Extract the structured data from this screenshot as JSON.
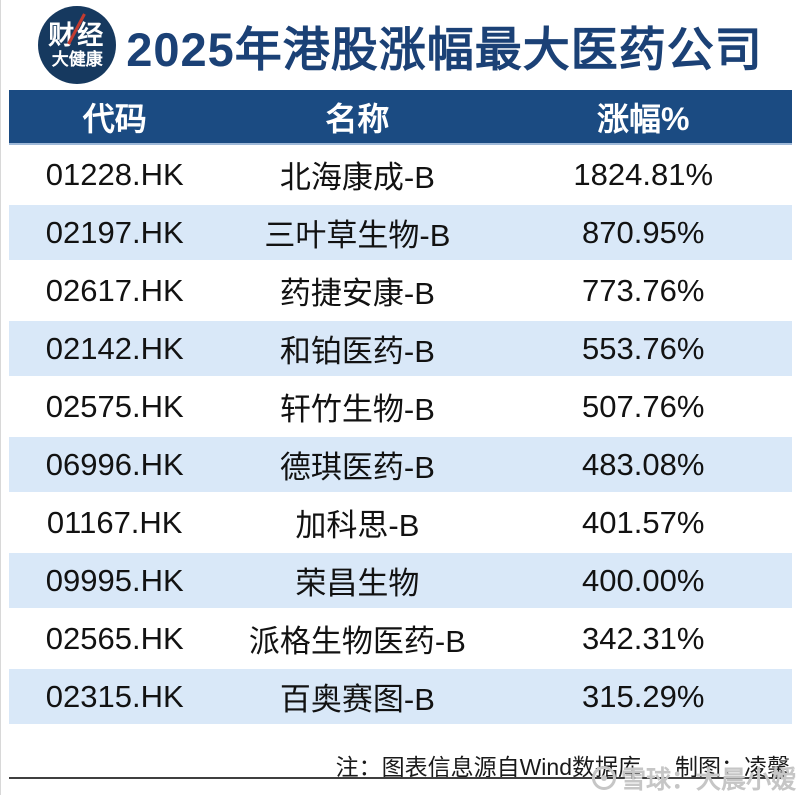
{
  "page": {
    "title": "2025年港股涨幅最大医药公司",
    "logo": {
      "line1": "财经",
      "line2": "大健康"
    }
  },
  "chart_data": {
    "type": "table",
    "title": "2025年港股涨幅最大医药公司",
    "columns": [
      "代码",
      "名称",
      "涨幅%"
    ],
    "rows": [
      {
        "code": "01228.HK",
        "name": "北海康成-B",
        "change": "1824.81%"
      },
      {
        "code": "02197.HK",
        "name": "三叶草生物-B",
        "change": "870.95%"
      },
      {
        "code": "02617.HK",
        "name": "药捷安康-B",
        "change": "773.76%"
      },
      {
        "code": "02142.HK",
        "name": "和铂医药-B",
        "change": "553.76%"
      },
      {
        "code": "02575.HK",
        "name": "轩竹生物-B",
        "change": "507.76%"
      },
      {
        "code": "06996.HK",
        "name": "德琪医药-B",
        "change": "483.08%"
      },
      {
        "code": "01167.HK",
        "name": "加科思-B",
        "change": "401.57%"
      },
      {
        "code": "09995.HK",
        "name": "荣昌生物",
        "change": "400.00%"
      },
      {
        "code": "02565.HK",
        "name": "派格生物医药-B",
        "change": "342.31%"
      },
      {
        "code": "02315.HK",
        "name": "百奥赛图-B",
        "change": "315.29%"
      }
    ],
    "change_values_pct": [
      1824.81,
      870.95,
      773.76,
      553.76,
      507.76,
      483.08,
      401.57,
      400.0,
      342.31,
      315.29
    ]
  },
  "footer": {
    "note": "注：图表信息源自Wind数据库",
    "credit": "制图：凌馨"
  },
  "watermark": {
    "source": "雪球：大晨小嫒"
  },
  "colors": {
    "header_bg": "#1b4b82",
    "title_text": "#1b4176",
    "row_alt_bg": "#d9e8f8",
    "logo_bg": "#16395f",
    "logo_accent": "#c23b30",
    "watermark": "#c6c6c6"
  }
}
